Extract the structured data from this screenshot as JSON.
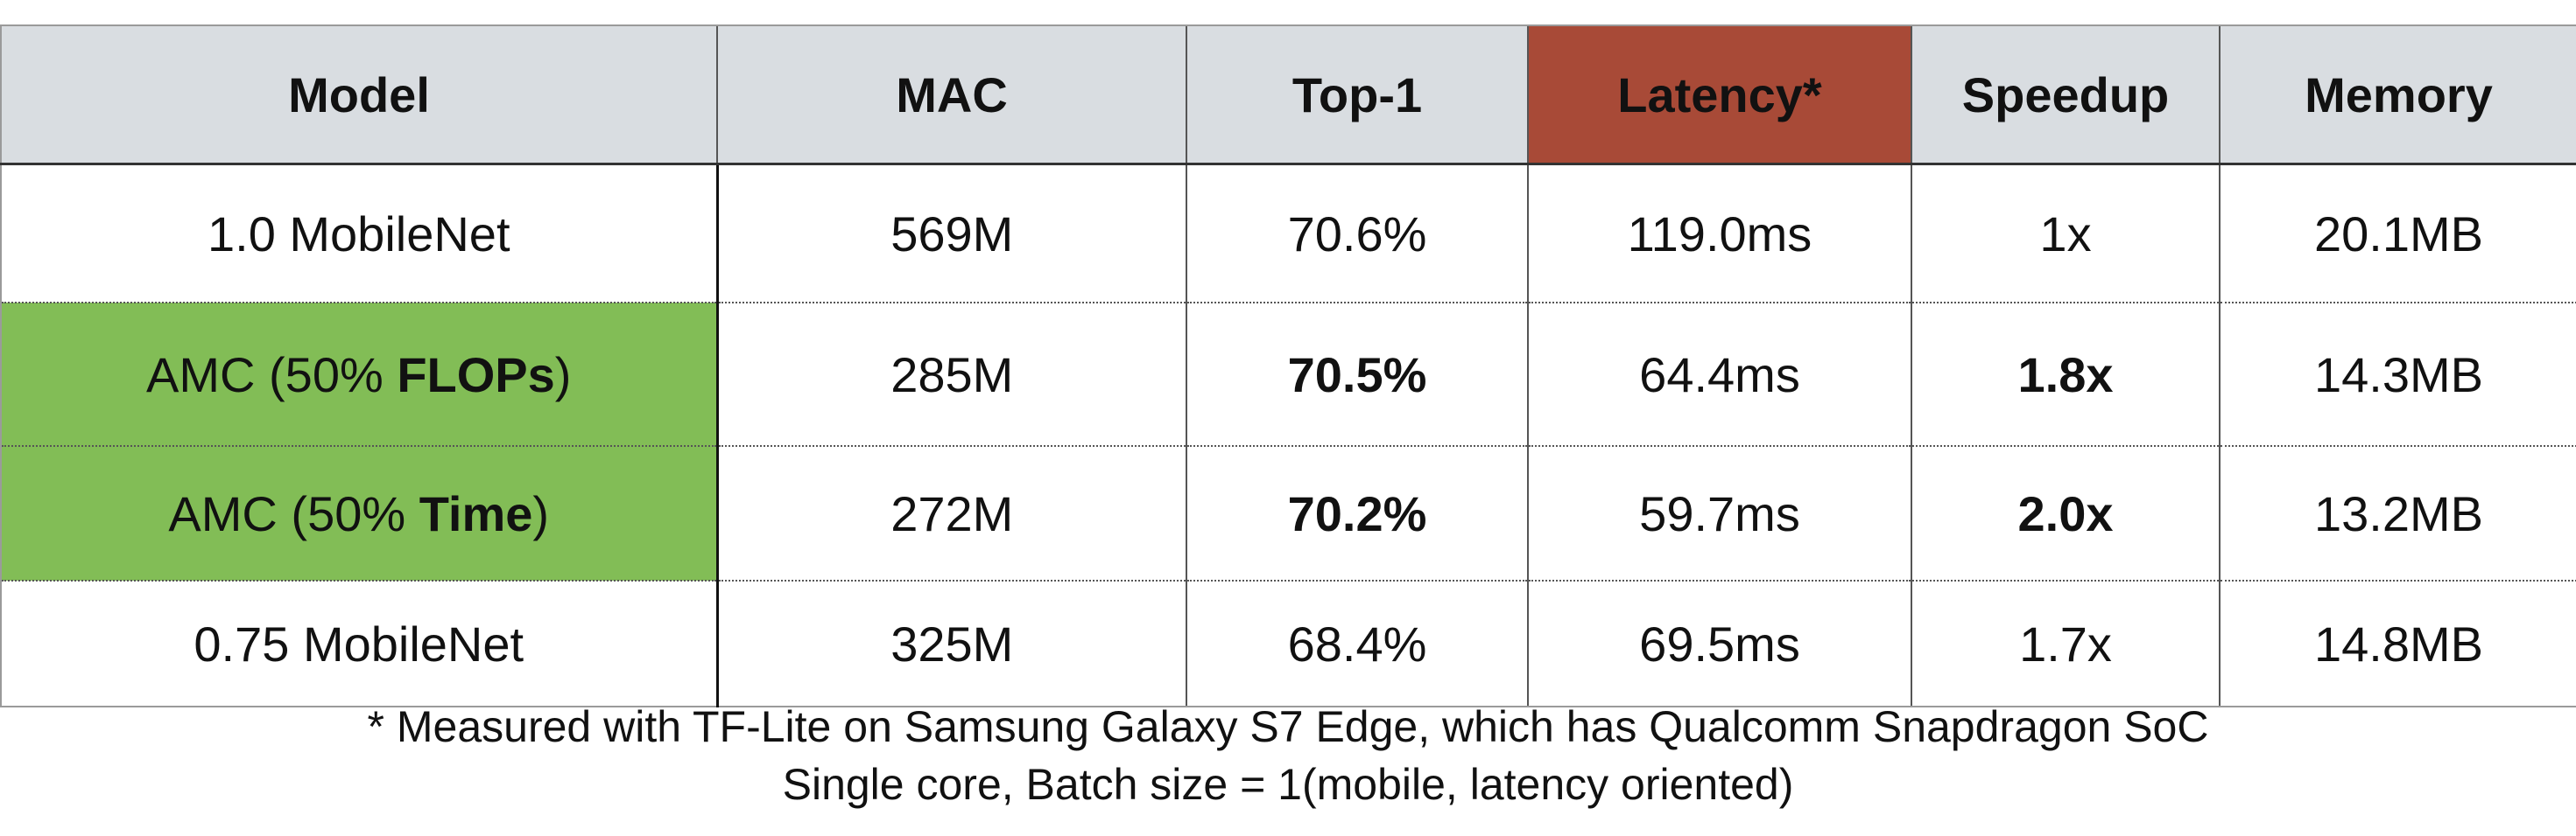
{
  "table": {
    "headers": [
      "Model",
      "MAC",
      "Top-1",
      "Latency*",
      "Speedup",
      "Memory"
    ],
    "rows": [
      {
        "model_prefix": "1.0 MobileNet",
        "model_bold": "",
        "model_suffix": "",
        "mac": "569M",
        "top1": "70.6%",
        "latency": "119.0ms",
        "speedup": "1x",
        "memory": "20.1MB"
      },
      {
        "model_prefix": "AMC (50% ",
        "model_bold": "FLOPs",
        "model_suffix": ")",
        "mac": "285M",
        "top1": "70.5%",
        "latency": "64.4ms",
        "speedup": "1.8x",
        "memory": "14.3MB"
      },
      {
        "model_prefix": "AMC (50% ",
        "model_bold": "Time",
        "model_suffix": ")",
        "mac": "272M",
        "top1": "70.2%",
        "latency": "59.7ms",
        "speedup": "2.0x",
        "memory": "13.2MB"
      },
      {
        "model_prefix": "0.75 MobileNet",
        "model_bold": "",
        "model_suffix": "",
        "mac": "325M",
        "top1": "68.4%",
        "latency": "69.5ms",
        "speedup": "1.7x",
        "memory": "14.8MB"
      }
    ]
  },
  "footnote": {
    "line1": "* Measured with TF-Lite on Samsung Galaxy S7 Edge, which has Qualcomm Snapdragon SoC",
    "line2": "Single core, Batch size = 1(mobile, latency oriented)"
  },
  "colors": {
    "header_bg": "#d9dde1",
    "latency_header_bg": "#a84a37",
    "amc_row_highlight": "#82bd56"
  }
}
